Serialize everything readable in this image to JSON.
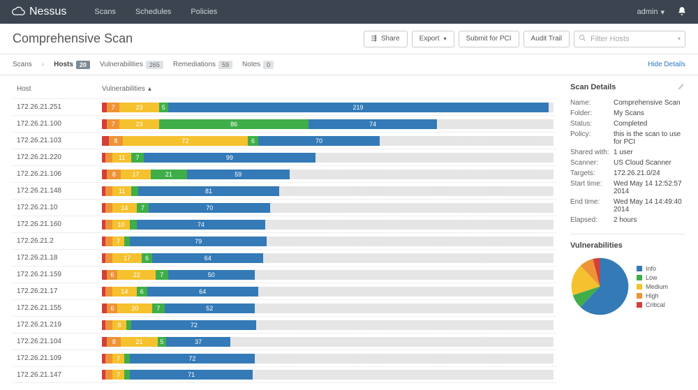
{
  "brand": "Nessus",
  "nav": {
    "scans": "Scans",
    "schedules": "Schedules",
    "policies": "Policies"
  },
  "user": "admin",
  "page_title": "Comprehensive Scan",
  "actions": {
    "share": "Share",
    "export": "Export",
    "submit": "Submit for PCI",
    "audit": "Audit Trail"
  },
  "filter_placeholder": "Filter Hosts",
  "crumbs": {
    "scans": "Scans",
    "hosts": "Hosts",
    "hosts_count": "20",
    "vulns": "Vulnerabilities",
    "vulns_count": "265",
    "remed": "Remediations",
    "remed_count": "59",
    "notes": "Notes",
    "notes_count": "0",
    "hide": "Hide Details"
  },
  "cols": {
    "host": "Host",
    "vuln": "Vulnerabilities"
  },
  "colors": {
    "critical": "#d43f3a",
    "high": "#ee9336",
    "medium": "#f5c12e",
    "low": "#3fae49",
    "info": "#337ab7",
    "track": "#e5e5e5"
  },
  "bar_max": 260,
  "hosts": [
    {
      "ip": "172.26.21.251",
      "critical": 3,
      "high": 7,
      "medium": 23,
      "low": 5,
      "info": 219
    },
    {
      "ip": "172.26.21.100",
      "critical": 3,
      "high": 7,
      "medium": 23,
      "low": 86,
      "info": 74
    },
    {
      "ip": "172.26.21.103",
      "critical": 4,
      "high": 8,
      "medium": 72,
      "low": 6,
      "info": 70
    },
    {
      "ip": "172.26.21.220",
      "critical": 2,
      "high": 4,
      "medium": 11,
      "low": 7,
      "info": 99
    },
    {
      "ip": "172.26.21.106",
      "critical": 3,
      "high": 8,
      "medium": 17,
      "low": 21,
      "info": 59
    },
    {
      "ip": "172.26.21.148",
      "critical": 2,
      "high": 4,
      "medium": 11,
      "low": 4,
      "info": 81
    },
    {
      "ip": "172.26.21.10",
      "critical": 2,
      "high": 4,
      "medium": 14,
      "low": 7,
      "info": 70
    },
    {
      "ip": "172.26.21.160",
      "critical": 2,
      "high": 4,
      "medium": 10,
      "low": 4,
      "info": 74
    },
    {
      "ip": "172.26.21.2",
      "critical": 2,
      "high": 4,
      "medium": 7,
      "low": 3,
      "info": 79
    },
    {
      "ip": "172.26.21.18",
      "critical": 2,
      "high": 4,
      "medium": 17,
      "low": 6,
      "info": 64
    },
    {
      "ip": "172.26.21.159",
      "critical": 3,
      "high": 6,
      "medium": 22,
      "low": 7,
      "info": 50
    },
    {
      "ip": "172.26.21.17",
      "critical": 2,
      "high": 4,
      "medium": 14,
      "low": 6,
      "info": 64
    },
    {
      "ip": "172.26.21.155",
      "critical": 3,
      "high": 6,
      "medium": 20,
      "low": 7,
      "info": 52
    },
    {
      "ip": "172.26.21.219",
      "critical": 2,
      "high": 4,
      "medium": 8,
      "low": 3,
      "info": 72
    },
    {
      "ip": "172.26.21.104",
      "critical": 3,
      "high": 8,
      "medium": 21,
      "low": 5,
      "info": 37
    },
    {
      "ip": "172.26.21.109",
      "critical": 2,
      "high": 4,
      "medium": 7,
      "low": 3,
      "info": 72
    },
    {
      "ip": "172.26.21.147",
      "critical": 2,
      "high": 4,
      "medium": 7,
      "low": 3,
      "info": 71
    }
  ],
  "details": {
    "title": "Scan Details",
    "rows": [
      {
        "k": "Name:",
        "v": "Comprehensive Scan"
      },
      {
        "k": "Folder:",
        "v": "My Scans"
      },
      {
        "k": "Status:",
        "v": "Completed"
      },
      {
        "k": "Policy:",
        "v": "this is the scan to use for PCI"
      },
      {
        "k": "Shared with:",
        "v": "1 user"
      },
      {
        "k": "Scanner:",
        "v": "US Cloud Scanner"
      },
      {
        "k": "Targets:",
        "v": "172.26.21.0/24"
      },
      {
        "k": "Start time:",
        "v": "Wed May 14 12:52:57 2014"
      },
      {
        "k": "End time:",
        "v": "Wed May 14 14:49:40 2014"
      },
      {
        "k": "Elapsed:",
        "v": "2 hours"
      }
    ]
  },
  "vuln_panel": {
    "title": "Vulnerabilities",
    "legend": [
      {
        "label": "Info",
        "color": "#337ab7"
      },
      {
        "label": "Low",
        "color": "#3fae49"
      },
      {
        "label": "Medium",
        "color": "#f5c12e"
      },
      {
        "label": "High",
        "color": "#ee9336"
      },
      {
        "label": "Critical",
        "color": "#d43f3a"
      }
    ],
    "pie": {
      "info": 62,
      "low": 8,
      "medium": 18,
      "high": 8,
      "critical": 4
    }
  }
}
